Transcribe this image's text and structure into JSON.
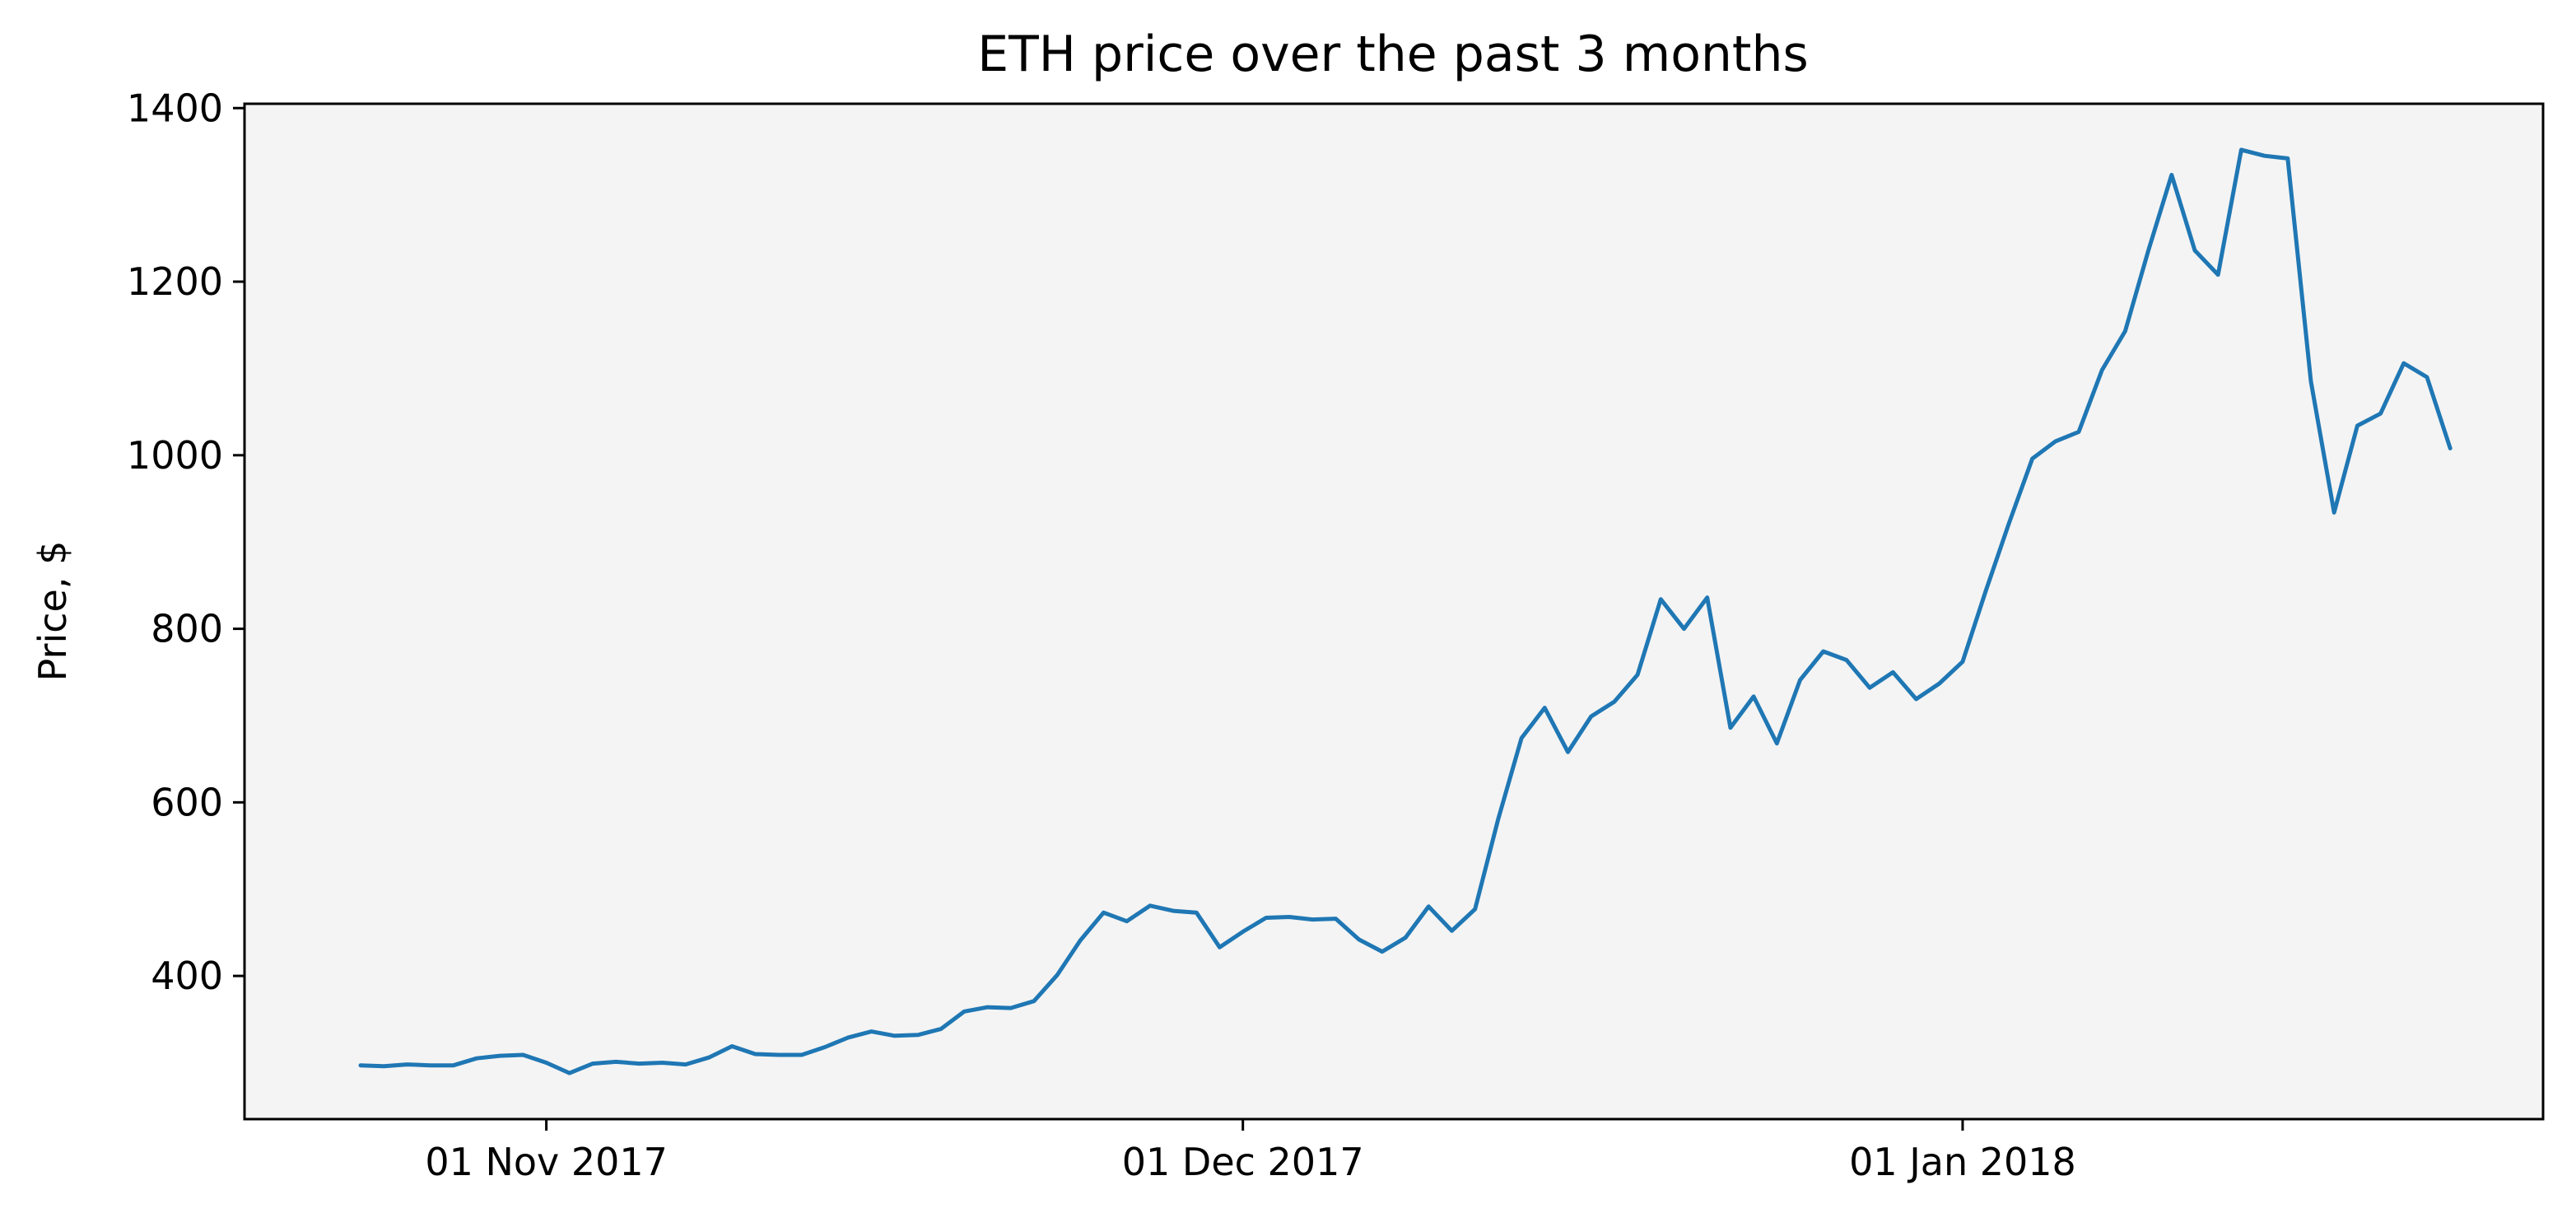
{
  "chart_data": {
    "type": "line",
    "title": "ETH price over the past 3 months",
    "xlabel": "",
    "ylabel": "Price, $",
    "ylim": [
      235,
      1405
    ],
    "xlim": [
      "2017-10-19",
      "2018-01-26"
    ],
    "grid": false,
    "background_color": "#f4f4f4",
    "series_color": "#1f77b4",
    "y_ticks": [
      400,
      600,
      800,
      1000,
      1200,
      1400
    ],
    "x_ticks": [
      {
        "date": "2017-11-01",
        "label": "01 Nov 2017"
      },
      {
        "date": "2017-12-01",
        "label": "01 Dec 2017"
      },
      {
        "date": "2018-01-01",
        "label": "01 Jan 2018"
      }
    ],
    "series": [
      {
        "x": [
          "2017-10-24",
          "2017-10-25",
          "2017-10-26",
          "2017-10-27",
          "2017-10-28",
          "2017-10-29",
          "2017-10-30",
          "2017-10-31",
          "2017-11-01",
          "2017-11-02",
          "2017-11-03",
          "2017-11-04",
          "2017-11-05",
          "2017-11-06",
          "2017-11-07",
          "2017-11-08",
          "2017-11-09",
          "2017-11-10",
          "2017-11-11",
          "2017-11-12",
          "2017-11-13",
          "2017-11-14",
          "2017-11-15",
          "2017-11-16",
          "2017-11-17",
          "2017-11-18",
          "2017-11-19",
          "2017-11-20",
          "2017-11-21",
          "2017-11-22",
          "2017-11-23",
          "2017-11-24",
          "2017-11-25",
          "2017-11-26",
          "2017-11-27",
          "2017-11-28",
          "2017-11-29",
          "2017-11-30",
          "2017-12-01",
          "2017-12-02",
          "2017-12-03",
          "2017-12-04",
          "2017-12-05",
          "2017-12-06",
          "2017-12-07",
          "2017-12-08",
          "2017-12-09",
          "2017-12-10",
          "2017-12-11",
          "2017-12-12",
          "2017-12-13",
          "2017-12-14",
          "2017-12-15",
          "2017-12-16",
          "2017-12-17",
          "2017-12-18",
          "2017-12-19",
          "2017-12-20",
          "2017-12-21",
          "2017-12-22",
          "2017-12-23",
          "2017-12-24",
          "2017-12-25",
          "2017-12-26",
          "2017-12-27",
          "2017-12-28",
          "2017-12-29",
          "2017-12-30",
          "2017-12-31",
          "2018-01-01",
          "2018-01-02",
          "2018-01-03",
          "2018-01-04",
          "2018-01-05",
          "2018-01-06",
          "2018-01-07",
          "2018-01-08",
          "2018-01-09",
          "2018-01-10",
          "2018-01-11",
          "2018-01-12",
          "2018-01-13",
          "2018-01-14",
          "2018-01-15",
          "2018-01-16",
          "2018-01-17",
          "2018-01-18",
          "2018-01-19",
          "2018-01-20",
          "2018-01-21",
          "2018-01-22"
        ],
        "values": [
          297,
          296,
          298,
          297,
          297,
          305,
          308,
          309,
          300,
          288,
          299,
          301,
          299,
          300,
          298,
          306,
          319,
          310,
          309,
          309,
          318,
          329,
          336,
          331,
          332,
          339,
          359,
          364,
          363,
          371,
          401,
          441,
          473,
          463,
          481,
          475,
          473,
          433,
          451,
          467,
          468,
          465,
          466,
          442,
          428,
          444,
          480,
          452,
          477,
          581,
          674,
          709,
          658,
          699,
          716,
          747,
          834,
          800,
          836,
          686,
          722,
          668,
          741,
          774,
          764,
          732,
          750,
          719,
          737,
          762,
          844,
          922,
          996,
          1016,
          1027,
          1098,
          1143,
          1236,
          1323,
          1236,
          1208,
          1352,
          1345,
          1342,
          1085,
          934,
          1034,
          1048,
          1106,
          1090,
          1008
        ]
      }
    ]
  }
}
